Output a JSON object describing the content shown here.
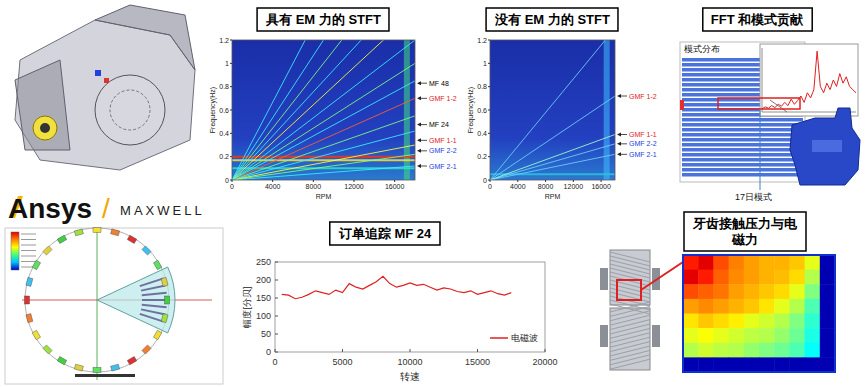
{
  "chart_data": [
    {
      "type": "spectrogram",
      "title": "具有 EM 力的 STFT",
      "xlabel": "RPM",
      "ylabel": "Frequency(Hz)",
      "xlim": [
        0,
        18000
      ],
      "xticks": [
        0,
        4000,
        8000,
        12000,
        16000
      ],
      "ylim": [
        0,
        1.2
      ],
      "yticks": [
        0,
        0.2,
        0.4,
        0.6,
        0.8,
        1,
        1.2
      ],
      "rays": [
        {
          "end": 0.12,
          "color": "#3cf0ff"
        },
        {
          "end": 0.22,
          "color": "#7fff7f"
        },
        {
          "end": 0.3,
          "color": "#ffff40"
        },
        {
          "end": 0.42,
          "color": "#3cf0ff"
        },
        {
          "end": 0.55,
          "color": "#7fff7f"
        },
        {
          "end": 0.7,
          "color": "#ff6030"
        },
        {
          "end": 0.85,
          "color": "#3cf0ff"
        },
        {
          "end": 1.0,
          "color": "#7fff7f"
        },
        {
          "end": 1.2,
          "color": "#3cf0ff"
        },
        {
          "end": 1.45,
          "color": "#ffff40"
        },
        {
          "end": 1.7,
          "color": "#3cf0ff"
        },
        {
          "end": 2.0,
          "color": "#7fff7f"
        },
        {
          "end": 2.4,
          "color": "#3cf0ff"
        },
        {
          "end": 3.0,
          "color": "#3cf0ff"
        }
      ],
      "bands": [
        {
          "y": 0.1,
          "color": "#30e0c0"
        },
        {
          "y": 0.17,
          "color": "#ffe030"
        },
        {
          "y": 0.2,
          "color": "#ff3010"
        }
      ],
      "vbands": [
        {
          "x": 17200,
          "color": "#40e080"
        }
      ],
      "annotations": [
        {
          "label": "MF 48",
          "y": 0.83,
          "color": "#000000"
        },
        {
          "label": "GMF 1-2",
          "y": 0.7,
          "color": "#e02020"
        },
        {
          "label": "MF 24",
          "y": 0.475,
          "color": "#000000"
        },
        {
          "label": "GMF 1-1",
          "y": 0.34,
          "color": "#e02020"
        },
        {
          "label": "GMF 2-2",
          "y": 0.25,
          "color": "#2040e0"
        },
        {
          "label": "GMF 2-1",
          "y": 0.12,
          "color": "#2040e0"
        }
      ]
    },
    {
      "type": "spectrogram",
      "title": "没有 EM 力的 STFT",
      "xlabel": "RPM",
      "ylabel": "Frequency(Hz)",
      "xlim": [
        0,
        18000
      ],
      "xticks": [
        0,
        4000,
        8000,
        12000,
        16000
      ],
      "ylim": [
        0,
        1.2
      ],
      "yticks": [
        0,
        0.2,
        0.4,
        0.6,
        0.8,
        1,
        1.2
      ],
      "rays": [
        {
          "end": 0.22,
          "color": "#70d0ff"
        },
        {
          "end": 0.31,
          "color": "#70d0ff"
        },
        {
          "end": 0.39,
          "color": "#a0ffd0"
        },
        {
          "end": 0.72,
          "color": "#70d0ff"
        },
        {
          "end": 1.3,
          "color": "#70d0ff"
        }
      ],
      "bands": [
        {
          "y": 0.05,
          "color": "#30c0e0"
        }
      ],
      "vbands": [
        {
          "x": 16800,
          "color": "#40c0ff"
        }
      ],
      "annotations": [
        {
          "label": "GMF 1-2",
          "y": 0.72,
          "color": "#e02020"
        },
        {
          "label": "GMF 1-1",
          "y": 0.39,
          "color": "#e02020"
        },
        {
          "label": "GMF 2-2",
          "y": 0.31,
          "color": "#2040e0"
        },
        {
          "label": "GMF 2-1",
          "y": 0.22,
          "color": "#2040e0"
        }
      ]
    },
    {
      "type": "line",
      "values": [
        0.05,
        0.08,
        0.06,
        0.1,
        0.07,
        0.12,
        0.09,
        0.15,
        0.1,
        0.2,
        0.12,
        0.18,
        0.25,
        0.15,
        0.3,
        0.22,
        0.35,
        0.95,
        0.4,
        0.3,
        0.45,
        0.35,
        0.5,
        0.4,
        0.6,
        0.45,
        0.55,
        0.4,
        0.35,
        0.3
      ],
      "ylim": [
        0,
        1
      ],
      "color": "#e02020",
      "tick_labels": false
    },
    {
      "type": "line",
      "title": "订单追踪 MF 24",
      "xlabel": "转速",
      "ylabel": "幅度[分贝]",
      "x": [
        500,
        1000,
        1500,
        2000,
        2500,
        3000,
        3500,
        4000,
        4500,
        5000,
        5500,
        6000,
        6500,
        7000,
        7500,
        8000,
        8500,
        9000,
        9500,
        10000,
        10500,
        11000,
        11500,
        12000,
        12500,
        13000,
        13500,
        14000,
        14500,
        15000,
        15500,
        16000,
        16500,
        17000,
        17500
      ],
      "series": [
        {
          "name": "电磁波",
          "color": "#e02020",
          "values": [
            160,
            158,
            148,
            152,
            160,
            170,
            165,
            160,
            172,
            165,
            190,
            180,
            175,
            185,
            195,
            210,
            190,
            180,
            185,
            192,
            185,
            188,
            180,
            172,
            178,
            175,
            168,
            165,
            170,
            160,
            165,
            170,
            162,
            158,
            165
          ]
        }
      ],
      "xlim": [
        0,
        20000
      ],
      "xticks": [
        0,
        5000,
        10000,
        15000,
        20000
      ],
      "ylim": [
        0,
        250
      ],
      "yticks": [
        0,
        50,
        100,
        150,
        200,
        250
      ],
      "grid": false,
      "legend": "lower right"
    }
  ],
  "logo": {
    "brand": "Ansys",
    "separator": "/",
    "product": "MAXWELL"
  },
  "fft_panel": {
    "title": "FFT 和模式贡献",
    "subtitle": "模式分布",
    "mode_label": "17日模式"
  },
  "gear_panel": {
    "title": "牙齿接触压力与电磁力",
    "range": [
      0,
      1
    ],
    "cells": [
      [
        0.85,
        0.9,
        0.8,
        0.75,
        0.72,
        0.7,
        0.7,
        0.68,
        0.6,
        0.05
      ],
      [
        0.9,
        0.85,
        0.78,
        0.74,
        0.72,
        0.7,
        0.69,
        0.66,
        0.55,
        0.05
      ],
      [
        0.8,
        0.78,
        0.76,
        0.72,
        0.7,
        0.68,
        0.66,
        0.6,
        0.5,
        0.05
      ],
      [
        0.72,
        0.74,
        0.72,
        0.7,
        0.68,
        0.65,
        0.6,
        0.55,
        0.45,
        0.05
      ],
      [
        0.65,
        0.68,
        0.66,
        0.64,
        0.6,
        0.58,
        0.55,
        0.5,
        0.42,
        0.05
      ],
      [
        0.6,
        0.62,
        0.6,
        0.58,
        0.56,
        0.55,
        0.52,
        0.48,
        0.4,
        0.05
      ],
      [
        0.55,
        0.58,
        0.56,
        0.55,
        0.52,
        0.5,
        0.48,
        0.45,
        0.38,
        0.05
      ],
      [
        0.05,
        0.05,
        0.05,
        0.05,
        0.05,
        0.05,
        0.05,
        0.05,
        0.05,
        0.05
      ]
    ]
  }
}
